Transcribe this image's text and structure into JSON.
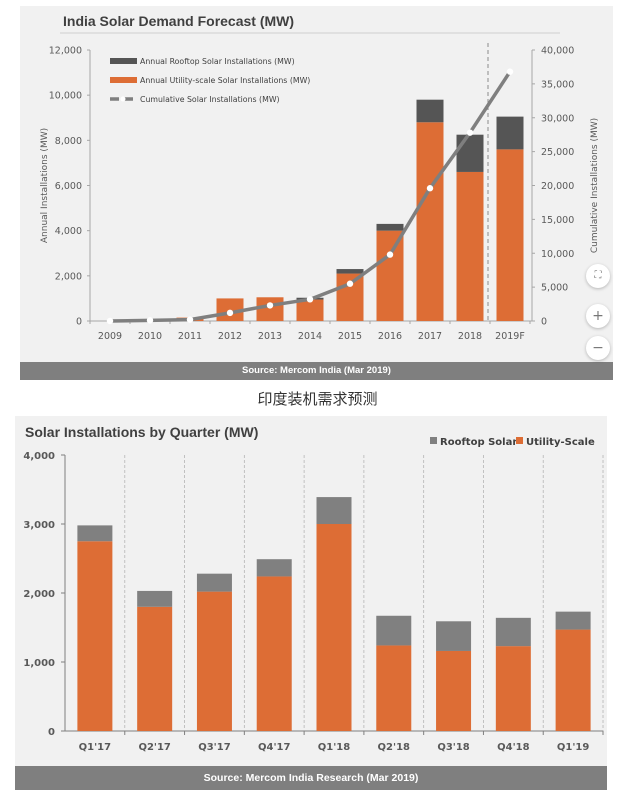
{
  "caption": "印度装机需求预测",
  "controls": {
    "fit_icon": "⛶",
    "zoom_in": "+",
    "zoom_out": "−"
  },
  "colors": {
    "utility": "#dd6d35",
    "rooftop_top": "#555555",
    "rooftop_bottom": "#808080",
    "cumulative_line": "#7f7f7f",
    "panel_bg": "#f1f1f1",
    "source_bg": "#7f7f7f"
  },
  "chart_data": [
    {
      "type": "bar",
      "subtype": "stacked-bar-with-line",
      "title": "India Solar Demand Forecast (MW)",
      "source": "Source: Mercom  India  (Mar 2019)",
      "categories": [
        "2009",
        "2010",
        "2011",
        "2012",
        "2013",
        "2014",
        "2015",
        "2016",
        "2017",
        "2018",
        "2019F"
      ],
      "ylabel": "Annual Installations (MW)",
      "y2label": "Cumulative Installations (MW)",
      "ylim": [
        0,
        12000
      ],
      "y2lim": [
        0,
        40000
      ],
      "yticks": [
        "0",
        "2,000",
        "4,000",
        "6,000",
        "8,000",
        "10,000",
        "12,000"
      ],
      "y2ticks": [
        "0",
        "5,000",
        "10,000",
        "15,000",
        "20,000",
        "25,000",
        "30,000",
        "35,000",
        "40,000"
      ],
      "forecast_divider_after": "2018",
      "legend_position": "top-left",
      "series": [
        {
          "name": "Annual Rooftop Solar Installations (MW)",
          "kind": "bar",
          "axis": "left",
          "values": [
            0,
            0,
            0,
            0,
            0,
            80,
            200,
            300,
            1000,
            1650,
            1450
          ]
        },
        {
          "name": "Annual Utility-scale Solar Installations (MW)",
          "kind": "bar",
          "axis": "left",
          "values": [
            0,
            0,
            150,
            1000,
            1050,
            950,
            2100,
            4000,
            8800,
            6600,
            7600
          ]
        },
        {
          "name": "Cumulative Solar Installations (MW)",
          "kind": "line",
          "axis": "right",
          "values": [
            0,
            100,
            200,
            1200,
            2300,
            3200,
            5500,
            9800,
            19600,
            27800,
            36800
          ]
        }
      ]
    },
    {
      "type": "bar",
      "subtype": "stacked-bar",
      "title": "Solar Installations by Quarter (MW)",
      "source": "Source: Mercom India Research (Mar 2019)",
      "categories": [
        "Q1'17",
        "Q2'17",
        "Q3'17",
        "Q4'17",
        "Q1'18",
        "Q2'18",
        "Q3'18",
        "Q4'18",
        "Q1'19"
      ],
      "ylim": [
        0,
        4000
      ],
      "yticks": [
        "0",
        "1,000",
        "2,000",
        "3,000",
        "4,000"
      ],
      "legend_position": "top-right",
      "series": [
        {
          "name": "Rooftop Solar",
          "values": [
            230,
            230,
            260,
            250,
            390,
            430,
            430,
            410,
            260
          ]
        },
        {
          "name": "Utility-Scale",
          "values": [
            2750,
            1800,
            2020,
            2240,
            3000,
            1240,
            1160,
            1230,
            1470
          ]
        }
      ]
    }
  ]
}
